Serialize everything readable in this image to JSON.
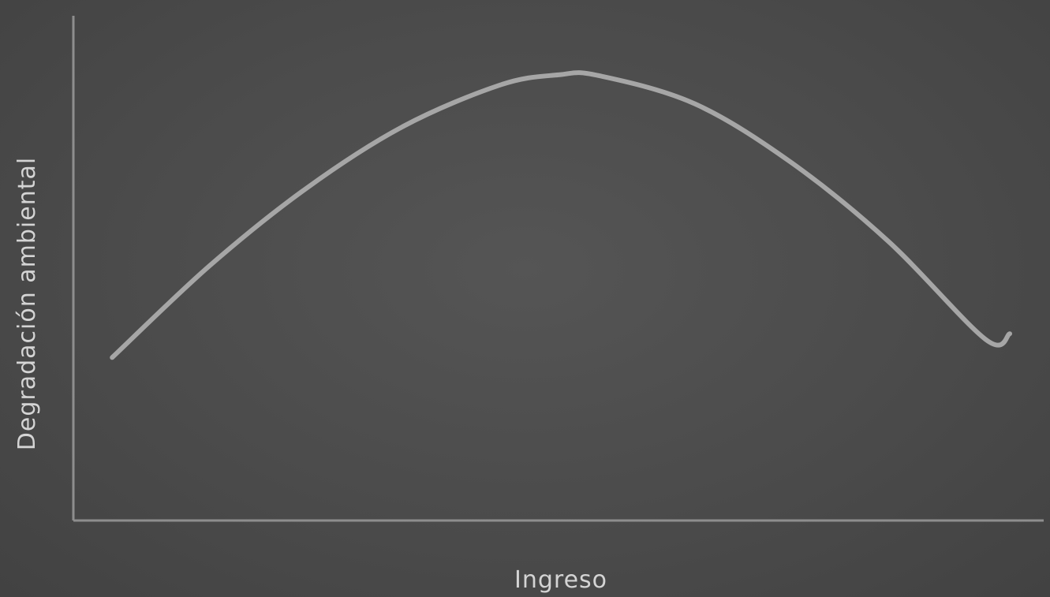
{
  "chart_data": {
    "type": "line",
    "title": "",
    "xlabel": "Ingreso",
    "ylabel": "Degradación ambiental",
    "xlim": [
      0,
      100
    ],
    "ylim": [
      0,
      100
    ],
    "grid": false,
    "legend": "none",
    "x_ticks": [],
    "y_ticks": [],
    "series": [
      {
        "x": [
          4,
          14,
          24,
          34,
          44,
          50,
          54,
          64,
          74,
          84,
          94,
          96.5
        ],
        "y": [
          32.3,
          50.4,
          65.8,
          78.1,
          86.3,
          88.3,
          88.2,
          82.6,
          70.9,
          55.3,
          35.9,
          37
        ],
        "color": "#a6a6a6"
      }
    ]
  }
}
